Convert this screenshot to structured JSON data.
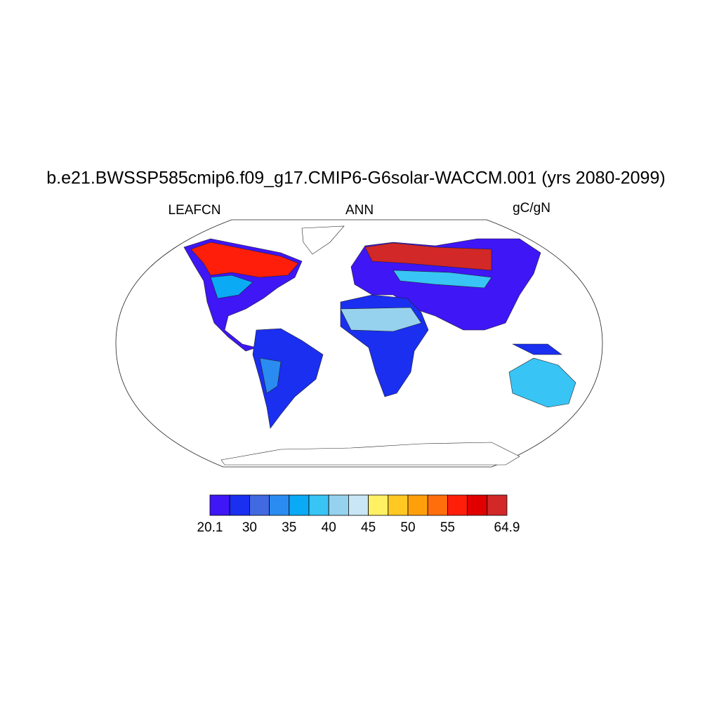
{
  "title": "b.e21.BWSSP585cmip6.f09_g17.CMIP6-G6solar-WACCM.001 (yrs 2080-2099)",
  "labels": {
    "left": "LEAFCN",
    "center": "ANN",
    "right": "gC/gN"
  },
  "colorbar": {
    "colors": [
      "#3f16f5",
      "#1a2ff0",
      "#4169e1",
      "#2a8cf0",
      "#0aaaf5",
      "#38c4f5",
      "#96d2ee",
      "#c8e6f5",
      "#fff064",
      "#ffc822",
      "#ffa00a",
      "#ff6e0a",
      "#ff1e0a",
      "#e00000",
      "#d22828"
    ],
    "ticks": [
      20.1,
      30,
      35,
      40,
      45,
      50,
      55,
      64.9
    ]
  }
}
